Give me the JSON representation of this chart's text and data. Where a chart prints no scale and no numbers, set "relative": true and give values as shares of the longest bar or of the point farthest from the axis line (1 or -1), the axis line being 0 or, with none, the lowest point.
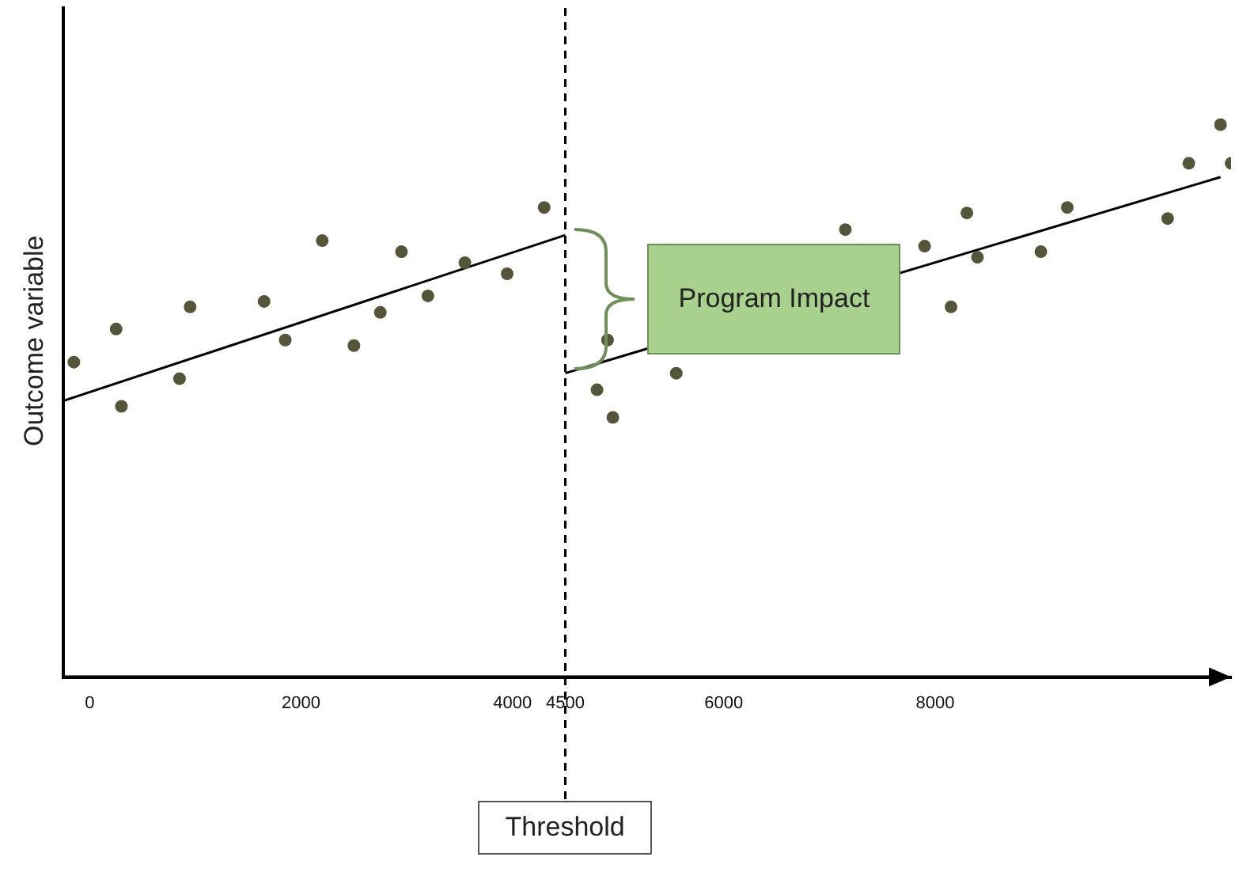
{
  "chart_data": {
    "type": "scatter",
    "ylabel": "Outcome variable",
    "relative": true,
    "xlim": [
      -250,
      10800
    ],
    "xticks": [
      0,
      2000,
      4000,
      4500,
      6000,
      8000
    ],
    "series": [
      {
        "type": "scatter",
        "marker": "circle",
        "color": "#55553a",
        "x": [
          -150,
          250,
          300,
          850,
          950,
          1650,
          1850,
          2200,
          2500,
          2750,
          2950,
          3200,
          3550,
          3950,
          4300,
          4800,
          4900,
          4950,
          5550,
          7150,
          7900,
          8150,
          8300,
          8400,
          9000,
          9250,
          10200,
          10400,
          10700,
          10800
        ],
        "values": [
          0.57,
          0.63,
          0.49,
          0.54,
          0.67,
          0.68,
          0.61,
          0.79,
          0.6,
          0.66,
          0.77,
          0.69,
          0.75,
          0.73,
          0.85,
          0.52,
          0.61,
          0.47,
          0.55,
          0.81,
          0.78,
          0.67,
          0.84,
          0.76,
          0.77,
          0.85,
          0.83,
          0.93,
          1.0,
          0.93
        ]
      },
      {
        "type": "line",
        "color": "#000000",
        "x": [
          -250,
          4500
        ],
        "values": [
          0.5,
          0.8
        ]
      },
      {
        "type": "line",
        "color": "#000000",
        "x": [
          4500,
          10700
        ],
        "values": [
          0.55,
          0.905
        ]
      }
    ],
    "ref_lines": [
      {
        "axis": "x",
        "value": 4500,
        "label": "Threshold",
        "line_style": "dashed",
        "color": "#000000"
      }
    ],
    "annotations": [
      "Program Impact"
    ]
  }
}
